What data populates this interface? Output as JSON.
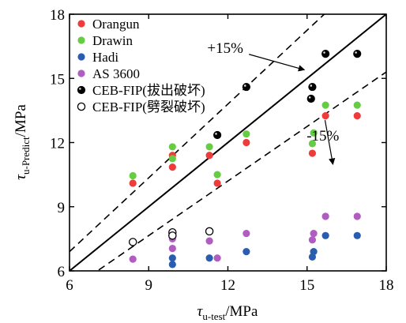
{
  "chart_data": {
    "type": "scatter",
    "title": "",
    "xlabel": {
      "symbol": "τ",
      "sub": "u-test",
      "unit": "/MPa"
    },
    "ylabel": {
      "symbol": "τ",
      "sub": "u-Predict",
      "unit": "/MPa"
    },
    "xlim": [
      6,
      18
    ],
    "ylim": [
      6,
      18
    ],
    "xticks": [
      "6",
      "9",
      "12",
      "15",
      "18"
    ],
    "yticks": [
      "6",
      "9",
      "12",
      "15",
      "18"
    ],
    "grid": false,
    "legend_position": "top-left",
    "series": [
      {
        "name": "Orangun",
        "color": "#ee3b3b",
        "fill": "solid",
        "points": [
          [
            8.4,
            10.1
          ],
          [
            9.9,
            11.4
          ],
          [
            9.9,
            10.85
          ],
          [
            11.3,
            11.4
          ],
          [
            11.6,
            10.1
          ],
          [
            12.7,
            12.0
          ],
          [
            15.2,
            11.5
          ],
          [
            15.7,
            13.25
          ],
          [
            16.9,
            13.25
          ]
        ]
      },
      {
        "name": "Drawin",
        "color": "#66cc44",
        "fill": "solid",
        "points": [
          [
            8.4,
            10.45
          ],
          [
            9.9,
            11.8
          ],
          [
            9.9,
            11.25
          ],
          [
            11.3,
            11.8
          ],
          [
            11.6,
            10.5
          ],
          [
            12.7,
            12.4
          ],
          [
            15.2,
            11.95
          ],
          [
            15.25,
            12.45
          ],
          [
            15.7,
            13.75
          ],
          [
            16.9,
            13.75
          ]
        ]
      },
      {
        "name": "Hadi",
        "color": "#2a5db0",
        "fill": "solid",
        "points": [
          [
            9.9,
            6.6
          ],
          [
            9.9,
            6.3
          ],
          [
            11.3,
            6.6
          ],
          [
            12.7,
            6.9
          ],
          [
            15.2,
            6.65
          ],
          [
            15.25,
            6.9
          ],
          [
            15.7,
            7.65
          ],
          [
            16.9,
            7.65
          ]
        ]
      },
      {
        "name": "AS 3600",
        "color": "#b05cc0",
        "fill": "solid",
        "points": [
          [
            8.4,
            6.55
          ],
          [
            9.9,
            7.5
          ],
          [
            9.9,
            7.05
          ],
          [
            11.3,
            7.4
          ],
          [
            11.6,
            6.6
          ],
          [
            12.7,
            7.75
          ],
          [
            15.2,
            7.45
          ],
          [
            15.25,
            7.75
          ],
          [
            15.7,
            8.55
          ],
          [
            16.9,
            8.55
          ]
        ]
      },
      {
        "name": "CEB-FIP(拔出破坏)",
        "color": "#000000",
        "fill": "black",
        "points": [
          [
            11.6,
            12.35
          ],
          [
            12.7,
            14.6
          ],
          [
            15.2,
            14.6
          ],
          [
            15.15,
            14.05
          ],
          [
            15.7,
            16.15
          ],
          [
            16.9,
            16.15
          ]
        ]
      },
      {
        "name": "CEB-FIP(劈裂破坏)",
        "color": "#000000",
        "fill": "open",
        "points": [
          [
            8.4,
            7.35
          ],
          [
            9.9,
            7.8
          ],
          [
            9.9,
            7.65
          ],
          [
            11.3,
            7.85
          ]
        ]
      }
    ],
    "reference_lines": [
      {
        "label": "",
        "slope": 1.0,
        "style": "solid"
      },
      {
        "label": "+15%",
        "slope": 1.15,
        "style": "dashed",
        "label_at": [
          11.9,
          16.2
        ],
        "arrow_to": [
          14.9,
          15.4
        ]
      },
      {
        "label": "-15%",
        "slope": 0.85,
        "style": "dashed",
        "label_at": [
          15.6,
          12.1
        ],
        "arrow_to": [
          15.8,
          12.9
        ]
      }
    ]
  }
}
